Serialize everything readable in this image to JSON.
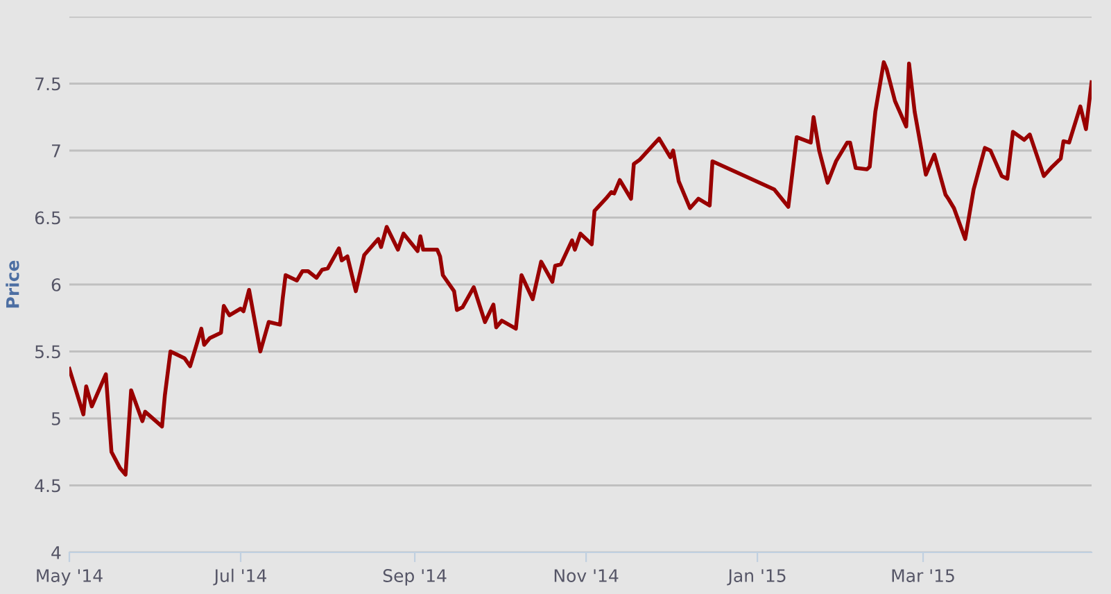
{
  "chart_data": {
    "type": "line",
    "ylabel": "Price",
    "x": [
      "2014-05-01",
      "2014-05-06",
      "2014-05-07",
      "2014-05-09",
      "2014-05-14",
      "2014-05-16",
      "2014-05-19",
      "2014-05-21",
      "2014-05-23",
      "2014-05-27",
      "2014-05-28",
      "2014-06-03",
      "2014-06-04",
      "2014-06-06",
      "2014-06-11",
      "2014-06-13",
      "2014-06-17",
      "2014-06-18",
      "2014-06-20",
      "2014-06-24",
      "2014-06-25",
      "2014-06-27",
      "2014-07-01",
      "2014-07-02",
      "2014-07-04",
      "2014-07-08",
      "2014-07-11",
      "2014-07-15",
      "2014-07-16",
      "2014-07-17",
      "2014-07-21",
      "2014-07-23",
      "2014-07-25",
      "2014-07-28",
      "2014-07-30",
      "2014-08-01",
      "2014-08-05",
      "2014-08-06",
      "2014-08-08",
      "2014-08-11",
      "2014-08-14",
      "2014-08-19",
      "2014-08-20",
      "2014-08-22",
      "2014-08-26",
      "2014-08-28",
      "2014-09-02",
      "2014-09-03",
      "2014-09-04",
      "2014-09-09",
      "2014-09-10",
      "2014-09-11",
      "2014-09-15",
      "2014-09-16",
      "2014-09-18",
      "2014-09-22",
      "2014-09-26",
      "2014-09-29",
      "2014-09-30",
      "2014-10-02",
      "2014-10-07",
      "2014-10-09",
      "2014-10-13",
      "2014-10-16",
      "2014-10-20",
      "2014-10-21",
      "2014-10-23",
      "2014-10-27",
      "2014-10-28",
      "2014-10-30",
      "2014-11-03",
      "2014-11-04",
      "2014-11-08",
      "2014-11-10",
      "2014-11-11",
      "2014-11-13",
      "2014-11-17",
      "2014-11-18",
      "2014-11-20",
      "2014-11-27",
      "2014-12-01",
      "2014-12-02",
      "2014-12-04",
      "2014-12-08",
      "2014-12-11",
      "2014-12-15",
      "2014-12-16",
      "2015-01-07",
      "2015-01-12",
      "2015-01-15",
      "2015-01-20",
      "2015-01-21",
      "2015-01-23",
      "2015-01-26",
      "2015-01-29",
      "2015-02-02",
      "2015-02-03",
      "2015-02-05",
      "2015-02-09",
      "2015-02-10",
      "2015-02-12",
      "2015-02-15",
      "2015-02-16",
      "2015-02-19",
      "2015-02-23",
      "2015-02-24",
      "2015-02-26",
      "2015-03-02",
      "2015-03-05",
      "2015-03-09",
      "2015-03-10",
      "2015-03-12",
      "2015-03-16",
      "2015-03-19",
      "2015-03-23",
      "2015-03-25",
      "2015-03-29",
      "2015-03-31",
      "2015-04-02",
      "2015-04-06",
      "2015-04-08",
      "2015-04-13",
      "2015-04-16",
      "2015-04-19",
      "2015-04-20",
      "2015-04-22",
      "2015-04-26",
      "2015-04-28",
      "2015-04-30"
    ],
    "series": [
      {
        "color": "#990000",
        "values": [
          5.37,
          5.03,
          5.24,
          5.09,
          5.33,
          4.75,
          4.63,
          4.58,
          5.21,
          4.98,
          5.05,
          4.94,
          5.17,
          5.5,
          5.45,
          5.39,
          5.67,
          5.55,
          5.6,
          5.64,
          5.84,
          5.77,
          5.82,
          5.8,
          5.96,
          5.5,
          5.72,
          5.7,
          5.9,
          6.07,
          6.03,
          6.1,
          6.1,
          6.05,
          6.11,
          6.12,
          6.27,
          6.18,
          6.21,
          5.95,
          6.22,
          6.34,
          6.28,
          6.43,
          6.26,
          6.38,
          6.25,
          6.36,
          6.26,
          6.26,
          6.21,
          6.07,
          5.95,
          5.81,
          5.83,
          5.98,
          5.72,
          5.85,
          5.68,
          5.73,
          5.67,
          6.07,
          5.89,
          6.17,
          6.02,
          6.14,
          6.15,
          6.33,
          6.26,
          6.38,
          6.3,
          6.55,
          6.64,
          6.69,
          6.68,
          6.78,
          6.64,
          6.9,
          6.93,
          7.09,
          6.95,
          7.0,
          6.77,
          6.57,
          6.64,
          6.59,
          6.92,
          6.71,
          6.58,
          7.1,
          7.06,
          7.25,
          7.0,
          6.76,
          6.92,
          7.06,
          7.06,
          6.87,
          6.86,
          6.88,
          7.29,
          7.66,
          7.61,
          7.37,
          7.18,
          7.65,
          7.29,
          6.82,
          6.97,
          6.67,
          6.64,
          6.57,
          6.34,
          6.71,
          7.02,
          7.0,
          6.81,
          6.79,
          7.14,
          7.08,
          7.12,
          6.81,
          6.88,
          6.94,
          7.07,
          7.06,
          7.33,
          7.16,
          7.51
        ]
      }
    ],
    "xlim": [
      "2014-05-01",
      "2015-04-30"
    ],
    "xticks": [
      {
        "value": "2014-05-01",
        "label": "May '14"
      },
      {
        "value": "2014-07-01",
        "label": "Jul '14"
      },
      {
        "value": "2014-09-01",
        "label": "Sep '14"
      },
      {
        "value": "2014-11-01",
        "label": "Nov '14"
      },
      {
        "value": "2015-01-01",
        "label": "Jan '15"
      },
      {
        "value": "2015-03-01",
        "label": "Mar '15"
      }
    ],
    "ylim": [
      4,
      8
    ],
    "yticks": [
      4,
      4.5,
      5,
      5.5,
      6,
      6.5,
      7,
      7.5,
      {
        "value": 8,
        "label": null
      }
    ],
    "grid": "y",
    "marker": "none",
    "line_style": "solid",
    "legend": false
  }
}
